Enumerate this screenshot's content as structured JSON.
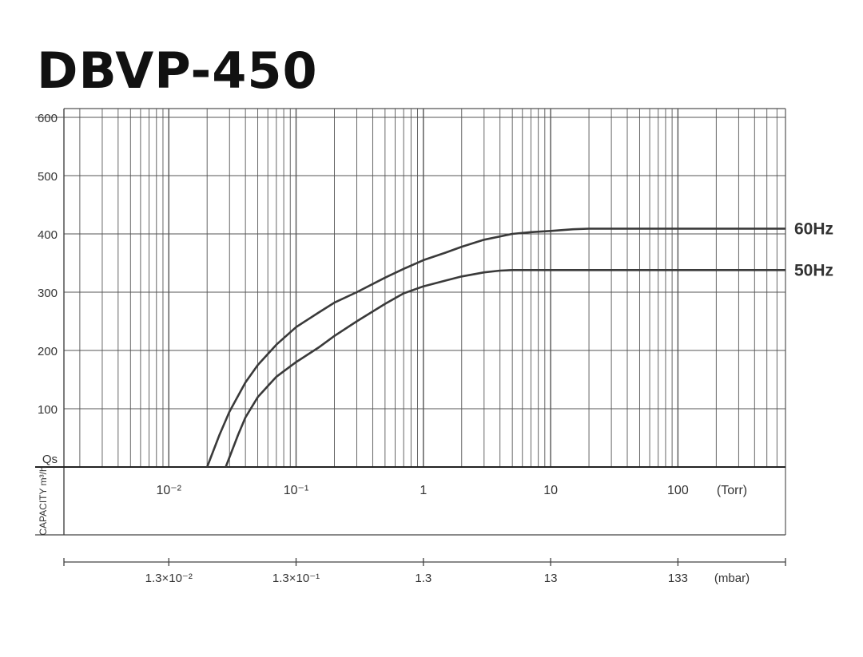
{
  "title": "DBVP-450",
  "chart_data": {
    "type": "line",
    "title": "DBVP-450",
    "x_scale": "log",
    "xlim": [
      0.0015,
      700
    ],
    "x_unit_label": "(Torr)",
    "x_ticks": [
      {
        "value": 0.01,
        "label": "10⁻²"
      },
      {
        "value": 0.1,
        "label": "10⁻¹"
      },
      {
        "value": 1,
        "label": "1"
      },
      {
        "value": 10,
        "label": "10"
      },
      {
        "value": 100,
        "label": "100"
      }
    ],
    "secondary_x_unit_label": "(mbar)",
    "secondary_x_ticks": [
      {
        "value": 0.01,
        "label": "1.3×10⁻²"
      },
      {
        "value": 0.1,
        "label": "1.3×10⁻¹"
      },
      {
        "value": 1,
        "label": "1.3"
      },
      {
        "value": 10,
        "label": "13"
      },
      {
        "value": 100,
        "label": "133"
      }
    ],
    "ylim": [
      0,
      600
    ],
    "y_ticks": [
      100,
      200,
      300,
      400,
      500,
      600
    ],
    "y_axis_label_top": "Qs",
    "y_axis_label": "CAPACITY m³/h",
    "grid": true,
    "series": [
      {
        "name": "60Hz",
        "x": [
          0.02,
          0.025,
          0.03,
          0.04,
          0.05,
          0.07,
          0.1,
          0.15,
          0.2,
          0.3,
          0.5,
          0.7,
          1,
          1.5,
          2,
          3,
          5,
          7,
          10,
          15,
          20,
          50,
          100,
          200,
          300,
          500,
          700
        ],
        "y": [
          0,
          55,
          95,
          145,
          175,
          210,
          240,
          265,
          282,
          300,
          325,
          340,
          355,
          368,
          378,
          390,
          400,
          403,
          405,
          408,
          409,
          409,
          409,
          409,
          409,
          409,
          409
        ]
      },
      {
        "name": "50Hz",
        "x": [
          0.028,
          0.035,
          0.04,
          0.05,
          0.07,
          0.1,
          0.15,
          0.2,
          0.3,
          0.5,
          0.7,
          1,
          1.5,
          2,
          3,
          4,
          5,
          10,
          50,
          100,
          300,
          700
        ],
        "y": [
          0,
          55,
          85,
          120,
          155,
          180,
          205,
          225,
          250,
          280,
          298,
          310,
          320,
          327,
          334,
          337,
          338,
          338,
          338,
          338,
          338,
          338
        ]
      }
    ]
  }
}
